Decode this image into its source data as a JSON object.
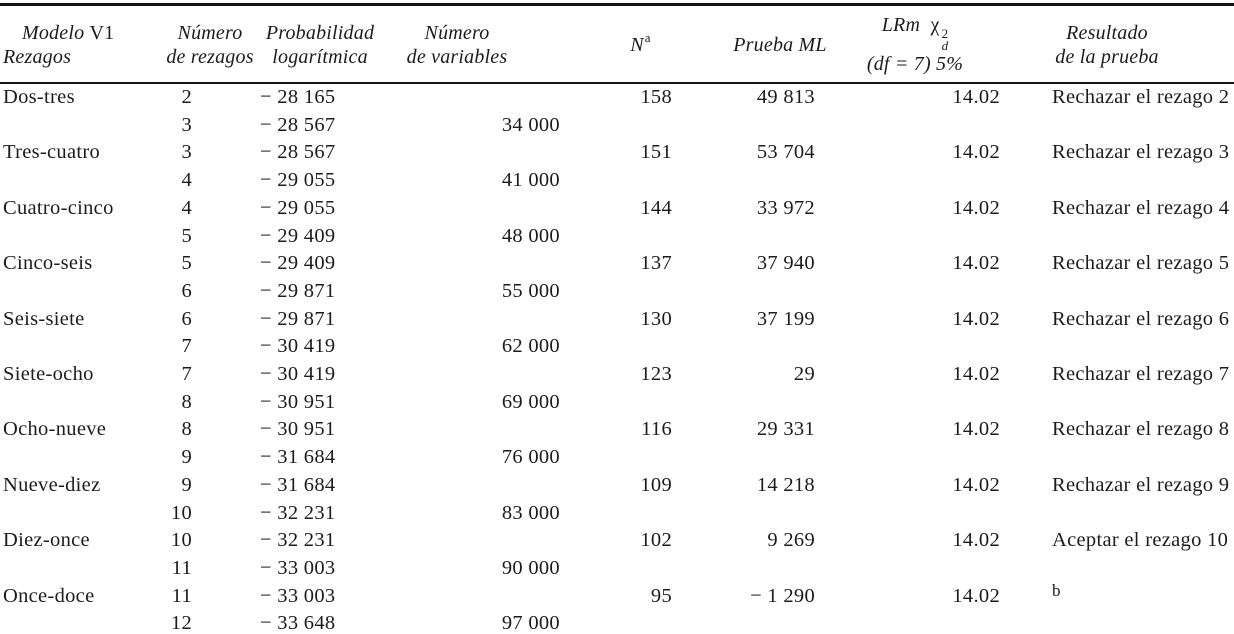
{
  "page": {
    "background": "#ffffff",
    "text_color": "#1c1c1c",
    "rule_color": "#141414"
  },
  "table": {
    "header": {
      "model": {
        "title_italic": "Modelo",
        "title_roman": "V1",
        "subtitle": "Rezagos"
      },
      "lags": {
        "line1": "Número",
        "line2": "de rezagos"
      },
      "loglik": {
        "line1": "Probabilidad",
        "line2": "logarítmica"
      },
      "vars": {
        "line1": "Número",
        "line2": "de variables"
      },
      "n": {
        "base": "N",
        "sup": "a"
      },
      "ml": {
        "label": "Prueba ML"
      },
      "lrm": {
        "prefix": "LRm",
        "chi": "χ",
        "sup": "2",
        "sub": "d",
        "line2": "(df = 7) 5%"
      },
      "result": {
        "line1": "Resultado",
        "line2": "de la prueba"
      }
    },
    "rows": [
      {
        "model": "Dos-tres",
        "lag": "2",
        "loglik": "− 28 165",
        "vars": "",
        "n": "158",
        "ml": "49 813",
        "lrm": "14.02",
        "result": "Rechazar el rezago 2"
      },
      {
        "model": "",
        "lag": "3",
        "loglik": "− 28 567",
        "vars": "34 000",
        "n": "",
        "ml": "",
        "lrm": "",
        "result": ""
      },
      {
        "model": "Tres-cuatro",
        "lag": "3",
        "loglik": "− 28 567",
        "vars": "",
        "n": "151",
        "ml": "53 704",
        "lrm": "14.02",
        "result": "Rechazar el rezago 3"
      },
      {
        "model": "",
        "lag": "4",
        "loglik": "− 29 055",
        "vars": "41 000",
        "n": "",
        "ml": "",
        "lrm": "",
        "result": ""
      },
      {
        "model": "Cuatro-cinco",
        "lag": "4",
        "loglik": "− 29 055",
        "vars": "",
        "n": "144",
        "ml": "33 972",
        "lrm": "14.02",
        "result": "Rechazar el rezago 4"
      },
      {
        "model": "",
        "lag": "5",
        "loglik": "− 29 409",
        "vars": "48 000",
        "n": "",
        "ml": "",
        "lrm": "",
        "result": ""
      },
      {
        "model": "Cinco-seis",
        "lag": "5",
        "loglik": "− 29 409",
        "vars": "",
        "n": "137",
        "ml": "37 940",
        "lrm": "14.02",
        "result": "Rechazar el rezago 5"
      },
      {
        "model": "",
        "lag": "6",
        "loglik": "− 29 871",
        "vars": "55 000",
        "n": "",
        "ml": "",
        "lrm": "",
        "result": ""
      },
      {
        "model": "Seis-siete",
        "lag": "6",
        "loglik": "− 29 871",
        "vars": "",
        "n": "130",
        "ml": "37 199",
        "lrm": "14.02",
        "result": "Rechazar el rezago 6"
      },
      {
        "model": "",
        "lag": "7",
        "loglik": "− 30 419",
        "vars": "62 000",
        "n": "",
        "ml": "",
        "lrm": "",
        "result": ""
      },
      {
        "model": "Siete-ocho",
        "lag": "7",
        "loglik": "− 30 419",
        "vars": "",
        "n": "123",
        "ml": "29",
        "lrm": "14.02",
        "result": "Rechazar el rezago 7"
      },
      {
        "model": "",
        "lag": "8",
        "loglik": "− 30 951",
        "vars": "69 000",
        "n": "",
        "ml": "",
        "lrm": "",
        "result": ""
      },
      {
        "model": "Ocho-nueve",
        "lag": "8",
        "loglik": "− 30 951",
        "vars": "",
        "n": "116",
        "ml": "29 331",
        "lrm": "14.02",
        "result": "Rechazar el rezago 8"
      },
      {
        "model": "",
        "lag": "9",
        "loglik": "− 31 684",
        "vars": "76 000",
        "n": "",
        "ml": "",
        "lrm": "",
        "result": ""
      },
      {
        "model": "Nueve-diez",
        "lag": "9",
        "loglik": "− 31 684",
        "vars": "",
        "n": "109",
        "ml": "14 218",
        "lrm": "14.02",
        "result": "Rechazar el rezago 9"
      },
      {
        "model": "",
        "lag": "10",
        "loglik": "− 32 231",
        "vars": "83 000",
        "n": "",
        "ml": "",
        "lrm": "",
        "result": ""
      },
      {
        "model": "Diez-once",
        "lag": "10",
        "loglik": "− 32 231",
        "vars": "",
        "n": "102",
        "ml": "9 269",
        "lrm": "14.02",
        "result": "Aceptar el rezago 10"
      },
      {
        "model": "",
        "lag": "11",
        "loglik": "− 33 003",
        "vars": "90 000",
        "n": "",
        "ml": "",
        "lrm": "",
        "result": ""
      },
      {
        "model": "Once-doce",
        "lag": "11",
        "loglik": "− 33 003",
        "vars": "",
        "n": "95",
        "ml": "− 1 290",
        "lrm": "14.02",
        "result": "b",
        "result_is_footnote": true
      },
      {
        "model": "",
        "lag": "12",
        "loglik": "− 33 648",
        "vars": "97 000",
        "n": "",
        "ml": "",
        "lrm": "",
        "result": ""
      }
    ]
  }
}
